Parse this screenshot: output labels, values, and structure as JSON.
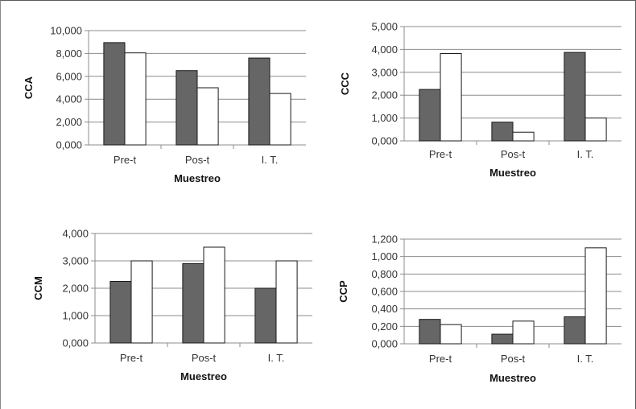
{
  "chart_data": [
    {
      "type": "bar",
      "ylabel": "CCA",
      "xlabel": "Muestreo",
      "categories": [
        "Pre-t",
        "Pos-t",
        "I. T."
      ],
      "series": [
        {
          "values": [
            8.95,
            6.5,
            7.6
          ],
          "color": "#666666"
        },
        {
          "values": [
            8.05,
            5.0,
            4.5
          ],
          "color": "#ffffff"
        }
      ],
      "ylim": [
        0,
        10
      ],
      "yticks": [
        "0,000",
        "2,000",
        "4,000",
        "6,000",
        "8,000",
        "10,000"
      ],
      "grid": true
    },
    {
      "type": "bar",
      "ylabel": "CCC",
      "xlabel": "Muestreo",
      "categories": [
        "Pre-t",
        "Pos-t",
        "I. T."
      ],
      "series": [
        {
          "values": [
            2.25,
            0.82,
            3.87
          ],
          "color": "#666666"
        },
        {
          "values": [
            3.82,
            0.38,
            1.0
          ],
          "color": "#ffffff"
        }
      ],
      "ylim": [
        0,
        5
      ],
      "yticks": [
        "0,000",
        "1,000",
        "2,000",
        "3,000",
        "4,000",
        "5,000"
      ],
      "grid": true
    },
    {
      "type": "bar",
      "ylabel": "CCM",
      "xlabel": "Muestreo",
      "categories": [
        "Pre-t",
        "Pos-t",
        "I. T."
      ],
      "series": [
        {
          "values": [
            2.25,
            2.9,
            2.0
          ],
          "color": "#666666"
        },
        {
          "values": [
            3.0,
            3.5,
            3.0
          ],
          "color": "#ffffff"
        }
      ],
      "ylim": [
        0,
        4
      ],
      "yticks": [
        "0,000",
        "1,000",
        "2,000",
        "3,000",
        "4,000"
      ],
      "grid": true
    },
    {
      "type": "bar",
      "ylabel": "CCP",
      "xlabel": "Muestreo",
      "categories": [
        "Pre-t",
        "Pos-t",
        "I. T."
      ],
      "series": [
        {
          "values": [
            0.28,
            0.11,
            0.31
          ],
          "color": "#666666"
        },
        {
          "values": [
            0.22,
            0.26,
            1.1
          ],
          "color": "#ffffff"
        }
      ],
      "ylim": [
        0,
        1.2
      ],
      "yticks": [
        "0,000",
        "0,200",
        "0,400",
        "0,600",
        "0,800",
        "1,000",
        "1,200"
      ],
      "grid": true
    }
  ]
}
